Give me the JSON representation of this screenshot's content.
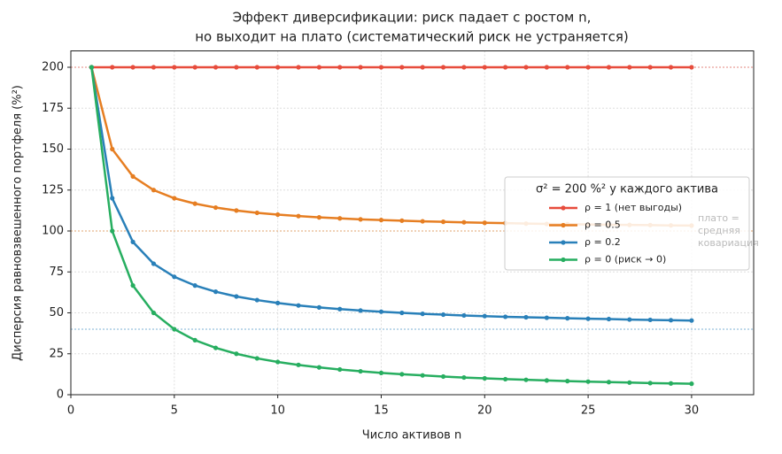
{
  "chart_data": {
    "type": "line",
    "title": [
      "Эффект диверсификации: риск падает с ростом n,",
      "но выходит на плато (систематический риск не устраняется)"
    ],
    "xlabel": "Число активов n",
    "ylabel": "Дисперсия равновзвешенного портфеля (%²)",
    "x": [
      1,
      2,
      3,
      4,
      5,
      6,
      7,
      8,
      9,
      10,
      11,
      12,
      13,
      14,
      15,
      16,
      17,
      18,
      19,
      20,
      21,
      22,
      23,
      24,
      25,
      26,
      27,
      28,
      29,
      30
    ],
    "series": [
      {
        "name": "ρ = 1 (нет выгоды)",
        "color": "#e74c3c",
        "values": [
          200,
          200,
          200,
          200,
          200,
          200,
          200,
          200,
          200,
          200,
          200,
          200,
          200,
          200,
          200,
          200,
          200,
          200,
          200,
          200,
          200,
          200,
          200,
          200,
          200,
          200,
          200,
          200,
          200,
          200
        ]
      },
      {
        "name": "ρ = 0.5",
        "color": "#e67e22",
        "values": [
          200,
          150,
          133.3,
          125,
          120,
          116.7,
          114.3,
          112.5,
          111.1,
          110,
          109.1,
          108.3,
          107.7,
          107.1,
          106.7,
          106.3,
          105.9,
          105.6,
          105.3,
          105,
          104.8,
          104.5,
          104.3,
          104.2,
          104,
          103.8,
          103.7,
          103.6,
          103.4,
          103.3
        ]
      },
      {
        "name": "ρ = 0.2",
        "color": "#2980b9",
        "values": [
          200,
          120,
          93.3,
          80,
          72,
          66.7,
          62.9,
          60,
          57.8,
          56,
          54.5,
          53.3,
          52.3,
          51.4,
          50.7,
          50,
          49.4,
          48.9,
          48.4,
          48,
          47.6,
          47.3,
          47,
          46.7,
          46.4,
          46.2,
          45.9,
          45.7,
          45.5,
          45.3
        ]
      },
      {
        "name": "ρ = 0 (риск → 0)",
        "color": "#27ae60",
        "values": [
          200,
          100,
          66.7,
          50,
          40,
          33.3,
          28.6,
          25,
          22.2,
          20,
          18.2,
          16.7,
          15.4,
          14.3,
          13.3,
          12.5,
          11.8,
          11.1,
          10.5,
          10,
          9.5,
          9.1,
          8.7,
          8.3,
          8,
          7.7,
          7.4,
          7.1,
          6.9,
          6.7
        ]
      }
    ],
    "reference_lines": [
      {
        "value": 200,
        "color": "#e74c3c"
      },
      {
        "value": 100,
        "color": "#e67e22"
      },
      {
        "value": 40,
        "color": "#2980b9"
      },
      {
        "value": 0,
        "color": "#000000"
      }
    ],
    "annotation": [
      "плато =",
      "средняя",
      "ковариация"
    ],
    "legend_title": "σ² = 200 %² у каждого актива",
    "legend": "center right",
    "grid": true,
    "xlim": [
      0,
      33
    ],
    "ylim": [
      0,
      210
    ],
    "xticks": [
      0,
      5,
      10,
      15,
      20,
      25,
      30
    ],
    "yticks": [
      0,
      25,
      50,
      75,
      100,
      125,
      150,
      175,
      200
    ]
  }
}
